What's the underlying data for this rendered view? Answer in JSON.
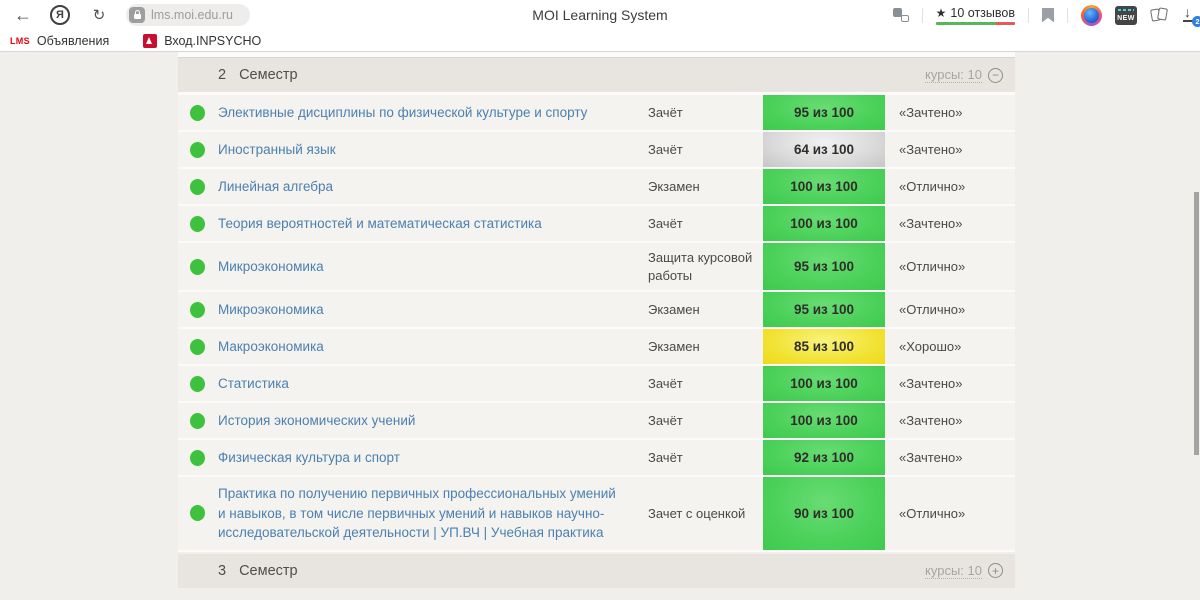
{
  "browser": {
    "toolbar": {
      "url": "lms.moi.edu.ru",
      "page_title": "MOI Learning System",
      "ratings_label": "10 отзывов",
      "downloads_badge": "2",
      "new_badge_label": "NEW"
    },
    "bookmarks_bar": {
      "items": [
        {
          "favicon_text": "LMS",
          "label": "Объявления"
        },
        {
          "favicon_text": "",
          "label": "Вход.INPSYCHO"
        }
      ]
    },
    "glyphs": {
      "back": "←",
      "refresh": "↻",
      "yandex_logo": "Я",
      "star": "★",
      "minus": "−",
      "plus": "+",
      "download_arrow": "↓"
    }
  },
  "page": {
    "semester_header": {
      "number": "2",
      "title": "Семестр",
      "courses_label": "курсы: 10"
    },
    "semester_footer": {
      "number": "3",
      "title": "Семестр",
      "courses_label": "курсы: 10"
    },
    "table": {
      "rows": [
        {
          "course": "Элективные дисциплины по физической культуре и спорту",
          "assessment": "Зачёт",
          "score": "95 из 100",
          "score_color": "green",
          "grade": "«Зачтено»"
        },
        {
          "course": "Иностранный язык",
          "assessment": "Зачёт",
          "score": "64 из 100",
          "score_color": "gray",
          "grade": "«Зачтено»"
        },
        {
          "course": "Линейная алгебра",
          "assessment": "Экзамен",
          "score": "100 из 100",
          "score_color": "green",
          "grade": "«Отлично»"
        },
        {
          "course": "Теория вероятностей и математическая статистика",
          "assessment": "Зачёт",
          "score": "100 из 100",
          "score_color": "green",
          "grade": "«Зачтено»"
        },
        {
          "course": "Микроэкономика",
          "assessment": "Защита курсовой работы",
          "score": "95 из 100",
          "score_color": "green",
          "grade": "«Отлично»"
        },
        {
          "course": "Микроэкономика",
          "assessment": "Экзамен",
          "score": "95 из 100",
          "score_color": "green",
          "grade": "«Отлично»"
        },
        {
          "course": "Макроэкономика",
          "assessment": "Экзамен",
          "score": "85 из 100",
          "score_color": "yellow",
          "grade": "«Хорошо»"
        },
        {
          "course": "Статистика",
          "assessment": "Зачёт",
          "score": "100 из 100",
          "score_color": "green",
          "grade": "«Зачтено»"
        },
        {
          "course": "История экономических учений",
          "assessment": "Зачёт",
          "score": "100 из 100",
          "score_color": "green",
          "grade": "«Зачтено»"
        },
        {
          "course": "Физическая культура и спорт",
          "assessment": "Зачёт",
          "score": "92 из 100",
          "score_color": "green",
          "grade": "«Зачтено»"
        },
        {
          "course": "Практика по получению первичных профессиональных умений и навыков, в том числе первичных умений и навыков научно-исследовательской деятельности | УП.ВЧ | Учебная практика",
          "assessment": "Зачет с оценкой",
          "score": "90 из 100",
          "score_color": "green",
          "grade": "«Отлично»"
        }
      ]
    }
  },
  "colors": {
    "score_green": "#49d058",
    "score_yellow": "#f1e336",
    "score_gray": "#dcdcdc",
    "course_link_blue": "#4a80b2",
    "bullet_green": "#3ec23e",
    "favicon_red": "#c8102e",
    "ratings_green": "#57b657",
    "ratings_red": "#e15b5b",
    "downloads_badge_blue": "#2f7fe0",
    "page_background": "#f1efeb",
    "section_bar_background": "#e8e5e1",
    "row_background": "#f5f3ef"
  }
}
